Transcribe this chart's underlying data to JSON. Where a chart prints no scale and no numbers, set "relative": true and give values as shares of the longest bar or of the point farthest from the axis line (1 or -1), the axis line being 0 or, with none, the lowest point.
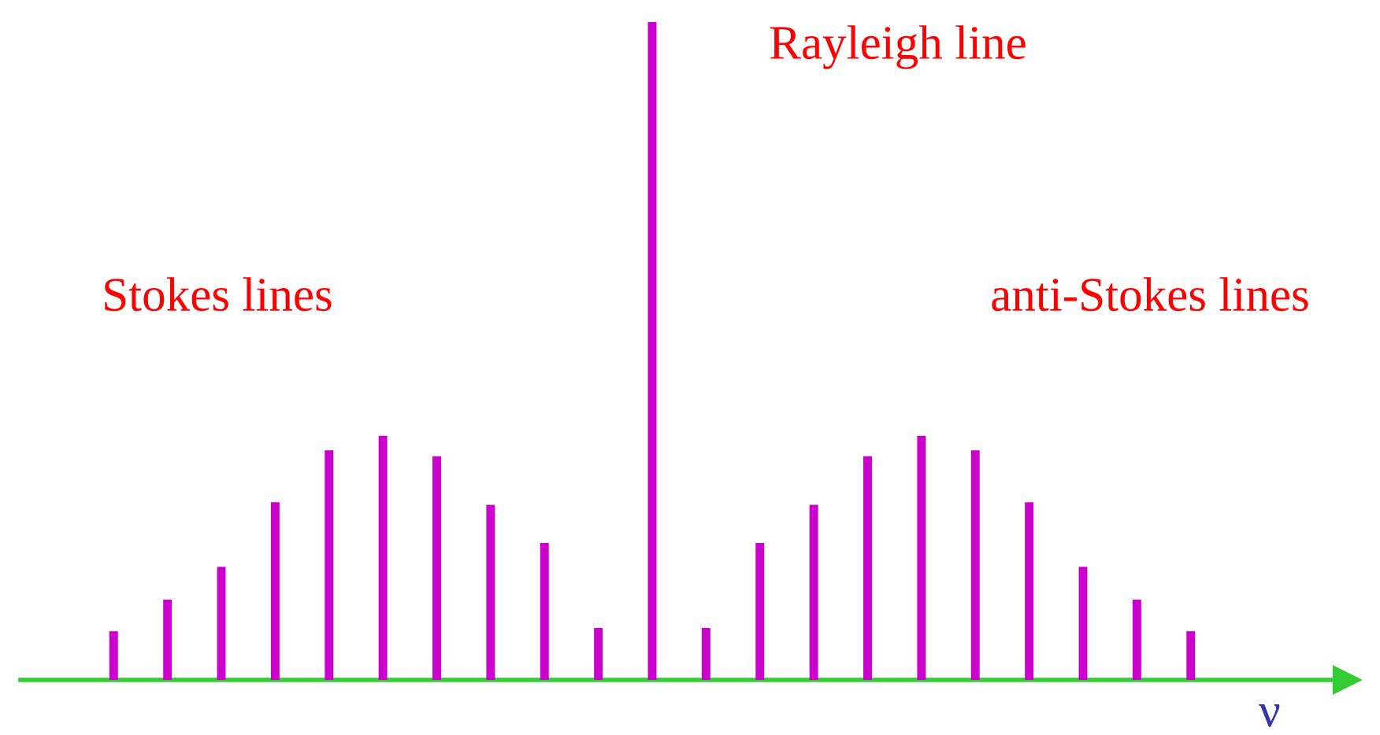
{
  "chart_data": {
    "type": "bar",
    "relative": true,
    "xlabel": "ν",
    "categories": [
      null,
      null,
      null,
      null,
      null,
      null,
      null,
      null,
      null,
      null,
      null,
      null,
      null,
      null,
      null,
      null,
      null,
      null,
      null,
      null,
      null
    ],
    "values": [
      0.074,
      0.122,
      0.172,
      0.27,
      0.349,
      0.371,
      0.34,
      0.266,
      0.208,
      0.079,
      1,
      0.079,
      0.208,
      0.266,
      0.34,
      0.371,
      0.349,
      0.27,
      0.172,
      0.122,
      0.074
    ],
    "color": "#cc00cc",
    "annotations": [
      "Stokes lines",
      "Rayleigh line",
      "anti-Stokes lines"
    ],
    "grid": false,
    "legend": false
  }
}
